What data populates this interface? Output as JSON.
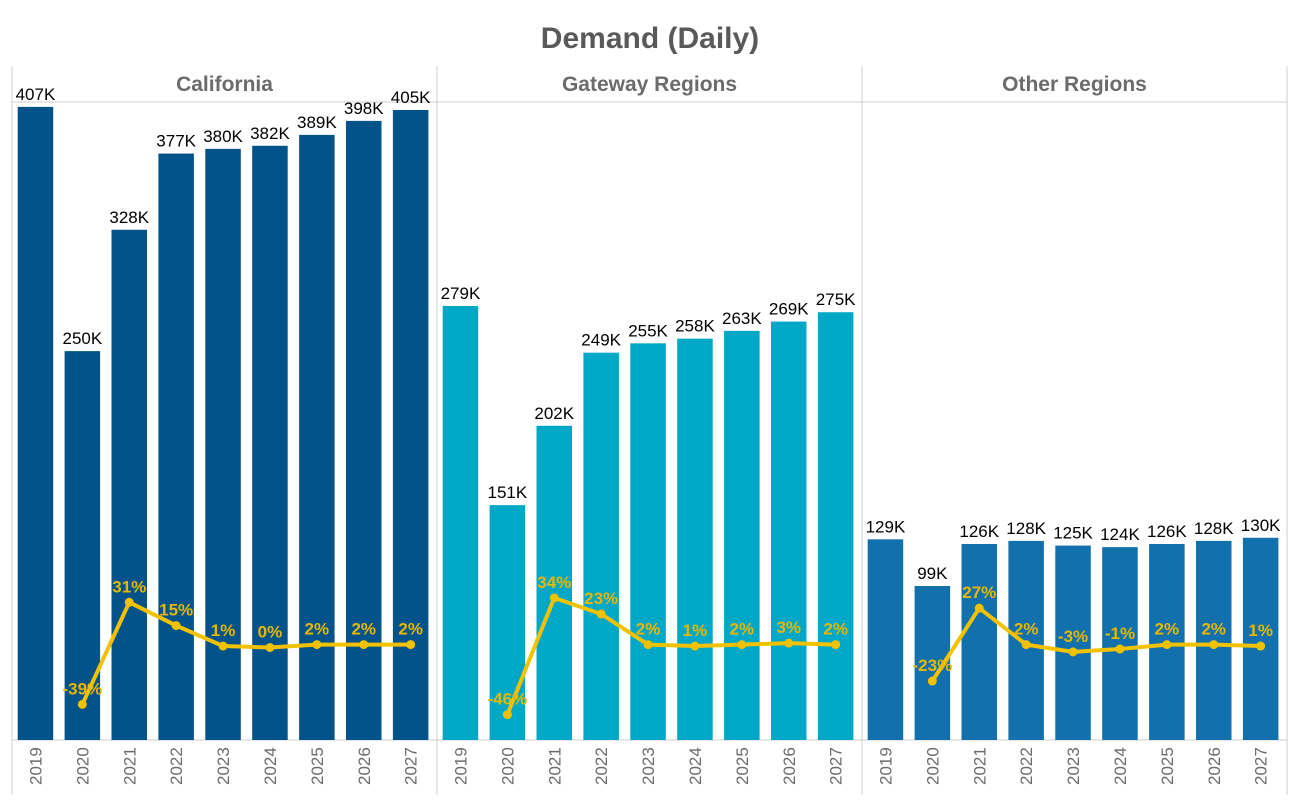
{
  "chart_data": {
    "type": "bar",
    "title": "Demand (Daily)",
    "categories": [
      "2019",
      "2020",
      "2021",
      "2022",
      "2023",
      "2024",
      "2025",
      "2026",
      "2027"
    ],
    "ylim": [
      0,
      420
    ],
    "growth_ylim": [
      -60,
      60
    ],
    "value_unit": "K",
    "colors": {
      "title": "#595959",
      "panel_title": "#6b6b6b",
      "growth_line": "#f2c200",
      "growth_label": "#e8b800",
      "grid": "#cfcfcf",
      "value_label": "#000000",
      "axis_label": "#6b6b6b"
    },
    "panels": [
      {
        "title": "California",
        "color": "#02538a",
        "values": [
          407,
          250,
          328,
          377,
          380,
          382,
          389,
          398,
          405
        ],
        "value_labels": [
          "407K",
          "250K",
          "328K",
          "377K",
          "380K",
          "382K",
          "389K",
          "398K",
          "405K"
        ],
        "growth": [
          null,
          -39,
          31,
          15,
          1,
          0,
          2,
          2,
          2
        ],
        "growth_labels": [
          "",
          "-39%",
          "31%",
          "15%",
          "1%",
          "0%",
          "2%",
          "2%",
          "2%"
        ]
      },
      {
        "title": "Gateway Regions",
        "color": "#00a8c7",
        "values": [
          279,
          151,
          202,
          249,
          255,
          258,
          263,
          269,
          275
        ],
        "value_labels": [
          "279K",
          "151K",
          "202K",
          "249K",
          "255K",
          "258K",
          "263K",
          "269K",
          "275K"
        ],
        "growth": [
          null,
          -46,
          34,
          23,
          2,
          1,
          2,
          3,
          2
        ],
        "growth_labels": [
          "",
          "-46%",
          "34%",
          "23%",
          "2%",
          "1%",
          "2%",
          "3%",
          "2%"
        ]
      },
      {
        "title": "Other Regions",
        "color": "#1270ad",
        "values": [
          129,
          99,
          126,
          128,
          125,
          124,
          126,
          128,
          130
        ],
        "value_labels": [
          "129K",
          "99K",
          "126K",
          "128K",
          "125K",
          "124K",
          "126K",
          "128K",
          "130K"
        ],
        "growth": [
          null,
          -23,
          27,
          2,
          -3,
          -1,
          2,
          2,
          1
        ],
        "growth_labels": [
          "",
          "-23%",
          "27%",
          "2%",
          "-3%",
          "-1%",
          "2%",
          "2%",
          "1%"
        ]
      }
    ]
  }
}
